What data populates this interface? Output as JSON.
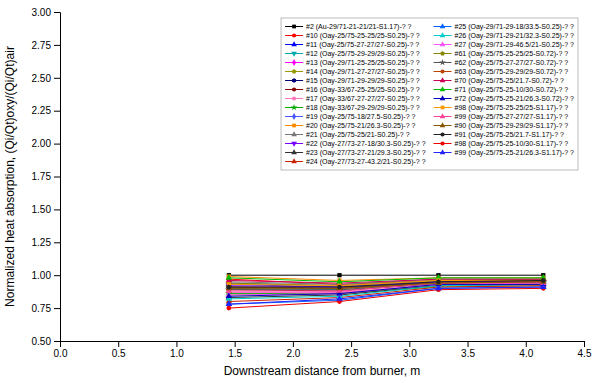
{
  "chart_data": {
    "type": "line",
    "xlabel": "Downstream distance from burner, m",
    "ylabel": "Normalized heat absorption, (Qi/Qt)oxy/(Qi/Qt)air",
    "xlim": [
      0.0,
      4.5
    ],
    "ylim": [
      0.5,
      3.0
    ],
    "xticks": [
      {
        "value": 0.0,
        "label": "0.0"
      },
      0.5,
      {
        "value": 1.0,
        "label": "1.0"
      },
      1.5,
      {
        "value": 2.0,
        "label": "2.0"
      },
      2.5,
      {
        "value": 3.0,
        "label": "3.0"
      },
      3.5,
      {
        "value": 4.0,
        "label": "4.0"
      },
      4.5
    ],
    "yticks": [
      {
        "value": 0.5,
        "label": "0.50"
      },
      0.75,
      {
        "value": 1.0,
        "label": "1.00"
      },
      1.25,
      {
        "value": 1.5,
        "label": "1.50"
      },
      1.75,
      {
        "value": 2.0,
        "label": "2.00"
      },
      2.25,
      {
        "value": 2.5,
        "label": "2.50"
      },
      2.75,
      {
        "value": 3.0,
        "label": "3.00"
      }
    ],
    "grid": false,
    "legend": "upper right",
    "x": [
      1.45,
      2.4,
      3.25,
      4.15
    ],
    "series": [
      {
        "name": "#2 (Au-29/71-21-21/21-S1.17)-? ?",
        "color": "#000000",
        "marker": "square",
        "values": [
          1.0,
          1.0,
          1.0,
          1.0
        ]
      },
      {
        "name": "#10 (Oay-25/75-25-25/25-S0.25)-? ?",
        "color": "#FF0000",
        "marker": "circle",
        "values": [
          0.97,
          0.93,
          0.96,
          0.97
        ]
      },
      {
        "name": "#11 (Oay-25/75-27-27/27-S0.25)-? ?",
        "color": "#0000FF",
        "marker": "triangle-up",
        "values": [
          0.93,
          0.91,
          0.94,
          0.95
        ]
      },
      {
        "name": "#12 (Oay-25/75-29-29/29-S0.25)-? ?",
        "color": "#00AAAA",
        "marker": "triangle-down",
        "values": [
          0.9,
          0.89,
          0.93,
          0.94
        ]
      },
      {
        "name": "#13 (Oay-29/71-25-25/25-S0.25)-? ?",
        "color": "#FF00FF",
        "marker": "diamond",
        "values": [
          0.87,
          0.87,
          0.92,
          0.93
        ]
      },
      {
        "name": "#14 (Oay-29/71-27-27/27-S0.25)-? ?",
        "color": "#999900",
        "marker": "pentagon",
        "values": [
          0.85,
          0.86,
          0.91,
          0.92
        ]
      },
      {
        "name": "#15 (Oay-29/71-29-29/29-S0.25)-? ?",
        "color": "#000077",
        "marker": "hexagon",
        "values": [
          0.91,
          0.9,
          0.95,
          0.96
        ]
      },
      {
        "name": "#16 (Oay-33/67-25-25/25-S0.25)-? ?",
        "color": "#880000",
        "marker": "circle",
        "values": [
          0.89,
          0.88,
          0.94,
          0.96
        ]
      },
      {
        "name": "#17 (Oay-33/67-27-27/27-S0.25)-? ?",
        "color": "#FF77BB",
        "marker": "circle",
        "values": [
          0.87,
          0.87,
          0.93,
          0.95
        ]
      },
      {
        "name": "#18 (Oay-33/67-29-29/29-S0.25)-? ?",
        "color": "#00AA00",
        "marker": "star",
        "values": [
          0.86,
          0.86,
          0.92,
          0.94
        ]
      },
      {
        "name": "#19 (Oay-25/75-18/27.5-S0.25)-? ?",
        "color": "#4455FF",
        "marker": "diamond",
        "values": [
          0.94,
          0.92,
          0.96,
          0.96
        ]
      },
      {
        "name": "#20 (Oay-25/75-21/26.3-S0.25)-? ?",
        "color": "#FF8800",
        "marker": "square",
        "values": [
          0.99,
          0.96,
          0.98,
          0.98
        ]
      },
      {
        "name": "#21 (Oay-25/75-25/21-S0.25)-? ?",
        "color": "#777777",
        "marker": "triangle-up",
        "values": [
          0.95,
          0.93,
          0.97,
          0.97
        ]
      },
      {
        "name": "#22 (Oay-27/73-27-18/30.3-S0.25)-? ?",
        "color": "#7700FF",
        "marker": "triangle-down",
        "values": [
          0.92,
          0.91,
          0.95,
          0.95
        ]
      },
      {
        "name": "#23 (Oay-27/73-27-21/29.3-S0.25)-? ?",
        "color": "#333333",
        "marker": "triangle-up",
        "values": [
          0.83,
          0.85,
          0.92,
          0.93
        ]
      },
      {
        "name": "#24 (Oay-27/73-27-43.2/21-S0.25)-? ?",
        "color": "#CC2200",
        "marker": "triangle-up",
        "values": [
          0.8,
          0.83,
          0.91,
          0.92
        ]
      },
      {
        "name": "#25 (Oay-29/71-29-18/33.5-S0.25)-? ?",
        "color": "#0066FF",
        "marker": "triangle-up",
        "values": [
          0.78,
          0.81,
          0.9,
          0.91
        ]
      },
      {
        "name": "#26 (Oay-29/71-29-21/32.3-S0.25)-? ?",
        "color": "#00CCCC",
        "marker": "triangle-up",
        "values": [
          0.82,
          0.84,
          0.92,
          0.93
        ]
      },
      {
        "name": "#27 (Oay-29/71-29-46.5/21-S0.25)-? ?",
        "color": "#FF55FF",
        "marker": "triangle-up",
        "values": [
          0.85,
          0.86,
          0.93,
          0.94
        ]
      },
      {
        "name": "#61 (Oay-25/75-25-25/25-S0.72)-? ?",
        "color": "#888800",
        "marker": "pentagon",
        "values": [
          0.94,
          0.92,
          0.96,
          0.96
        ]
      },
      {
        "name": "#62 (Oay-25/75-27-27/27-S0.72)-? ?",
        "color": "#555555",
        "marker": "star",
        "values": [
          0.89,
          0.89,
          0.94,
          0.95
        ]
      },
      {
        "name": "#63 (Oay-25/75-29-29/29-S0.72)-? ?",
        "color": "#BB4400",
        "marker": "circle",
        "values": [
          0.91,
          0.9,
          0.94,
          0.95
        ]
      },
      {
        "name": "#70 (Oay-25/75-25/21.7-S0.72)-? ?",
        "color": "#CC0055",
        "marker": "triangle-up",
        "values": [
          0.96,
          0.94,
          0.97,
          0.97
        ]
      },
      {
        "name": "#71 (Oay-25/75-25-10/30-S0.72)-? ?",
        "color": "#00BB00",
        "marker": "triangle-up",
        "values": [
          0.98,
          0.95,
          0.98,
          0.98
        ]
      },
      {
        "name": "#72 (Oay-25/75-25-21/26.3-S0.72)-? ?",
        "color": "#0000BB",
        "marker": "triangle-up",
        "values": [
          0.84,
          0.86,
          0.93,
          0.93
        ]
      },
      {
        "name": "#98 (Oay-25/75-25-25/25-S1.17)-? ?",
        "color": "#FF9900",
        "marker": "square",
        "values": [
          0.93,
          0.92,
          0.96,
          0.96
        ]
      },
      {
        "name": "#99 (Oay-25/75-27-27/27-S1.17)-? ?",
        "color": "#FF4499",
        "marker": "triangle-up",
        "values": [
          0.88,
          0.88,
          0.94,
          0.94
        ]
      },
      {
        "name": "#90 (Oay-25/75-29-29/29-S1.17)-? ?",
        "color": "#885500",
        "marker": "triangle-up",
        "values": [
          0.9,
          0.9,
          0.94,
          0.95
        ]
      },
      {
        "name": "#91 (Oay-25/75-25/21.7-S1.17)-? ?",
        "color": "#222222",
        "marker": "circle",
        "values": [
          0.91,
          0.91,
          0.95,
          0.96
        ]
      },
      {
        "name": "#98 (Oay-25/75-25-10/30-S1.17)-? ?",
        "color": "#EE0000",
        "marker": "circle",
        "values": [
          0.75,
          0.8,
          0.89,
          0.9
        ]
      },
      {
        "name": "#99 (Oay-25/75-25-21/26.3-S1.17)-? ?",
        "color": "#2222FF",
        "marker": "triangle-up",
        "values": [
          0.78,
          0.82,
          0.9,
          0.91
        ]
      }
    ]
  }
}
